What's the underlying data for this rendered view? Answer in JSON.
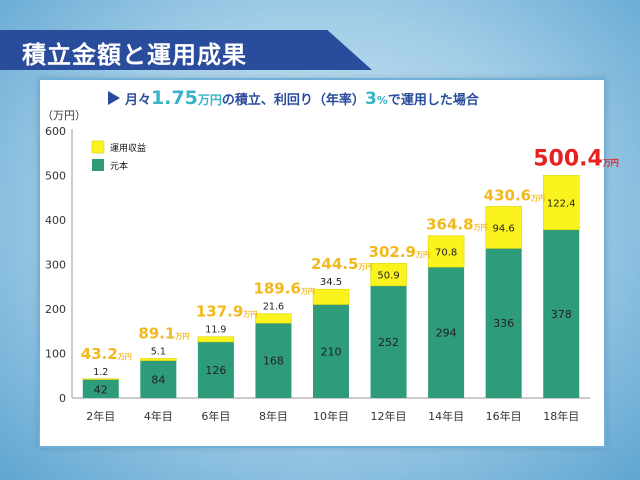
{
  "header": {
    "title": "積立金額と運用成果"
  },
  "chart_data": {
    "type": "bar",
    "stacked": true,
    "subtitle_parts": {
      "prefix": "月々",
      "amount": "1.75",
      "amount_unit": "万円",
      "middle": "の積立、利回り（年率）",
      "rate": "3",
      "rate_unit": "%",
      "suffix": "で運用した場合"
    },
    "ylabel": "（万円）",
    "ylim": [
      0,
      600
    ],
    "yticks": [
      0,
      100,
      200,
      300,
      400,
      500,
      600
    ],
    "categories": [
      "2年目",
      "4年目",
      "6年目",
      "8年目",
      "10年目",
      "12年目",
      "14年目",
      "16年目",
      "18年目"
    ],
    "series": [
      {
        "name": "元本",
        "color": "#2e9b7a",
        "values": [
          42,
          84,
          126,
          168,
          210,
          252,
          294,
          336,
          378
        ],
        "labels": [
          "42",
          "84",
          "126",
          "168",
          "210",
          "252",
          "294",
          "336",
          "378"
        ]
      },
      {
        "name": "運用収益",
        "color": "#fbf31e",
        "values": [
          1.2,
          5.1,
          11.9,
          21.6,
          34.5,
          50.9,
          70.8,
          94.6,
          122.4
        ],
        "labels": [
          "1.2",
          "5.1",
          "11.9",
          "21.6",
          "34.5",
          "50.9",
          "70.8",
          "94.6",
          "122.4"
        ]
      }
    ],
    "legend": [
      "運用収益",
      "元本"
    ],
    "legend_position": "top-left",
    "totals": [
      "43.2",
      "89.1",
      "137.9",
      "189.6",
      "244.5",
      "302.9",
      "364.8",
      "430.6",
      "500.4"
    ],
    "total_unit": "万円",
    "total_color": "#f2b81c",
    "final_total_color": "#e8201e"
  }
}
